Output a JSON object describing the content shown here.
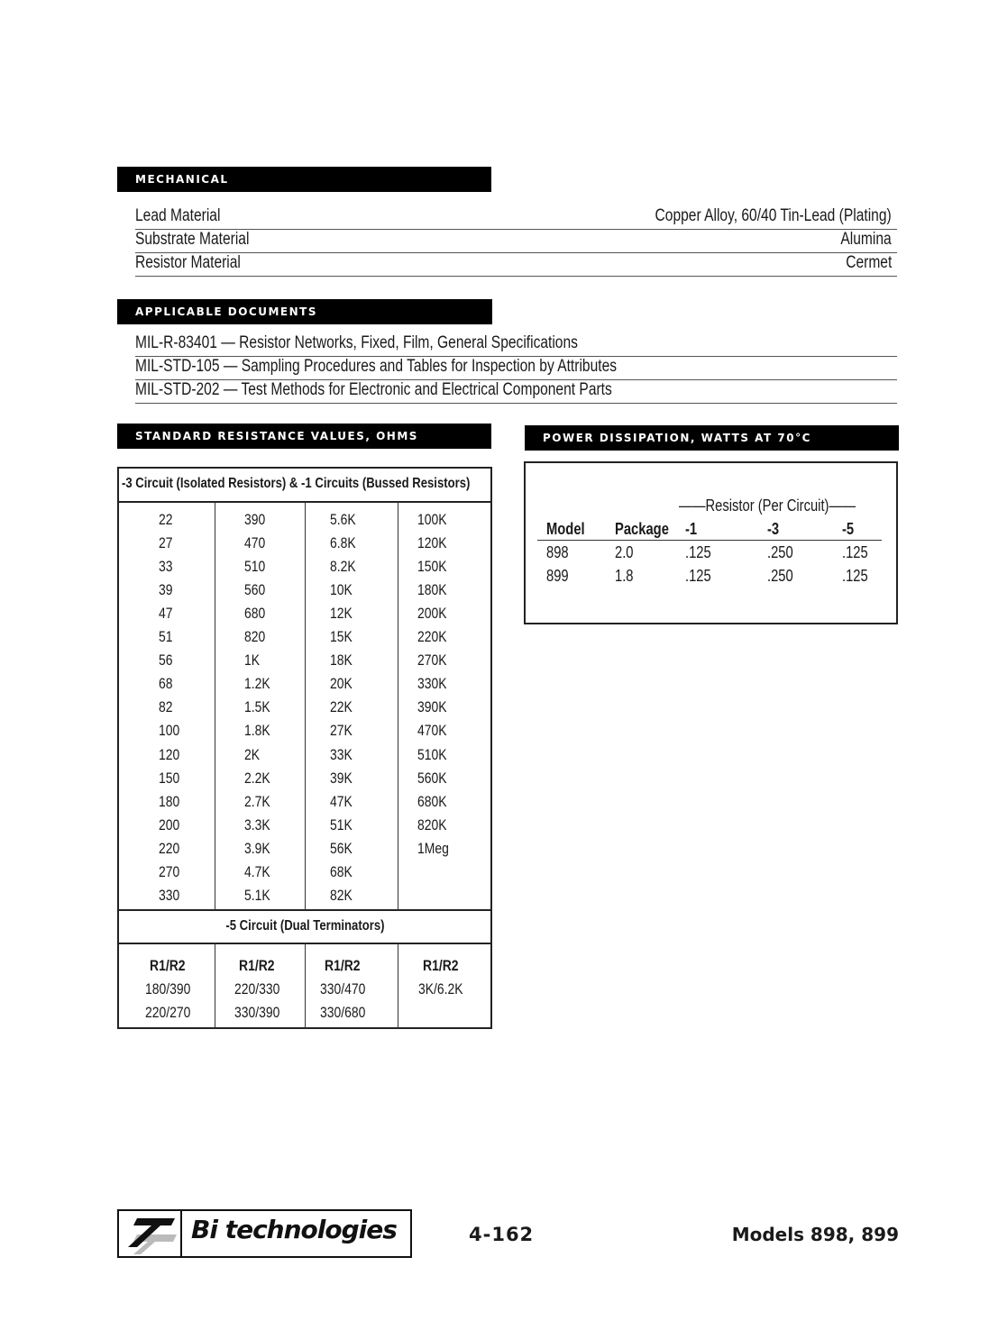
{
  "mechanical": {
    "title": "MECHANICAL",
    "rows": [
      {
        "label": "Lead Material",
        "value": "Copper Alloy, 60/40 Tin-Lead (Plating)"
      },
      {
        "label": "Substrate Material",
        "value": "Alumina"
      },
      {
        "label": "Resistor Material",
        "value": "Cermet"
      }
    ]
  },
  "documents": {
    "title": "APPLICABLE DOCUMENTS",
    "items": [
      "MIL-R-83401 — Resistor Networks, Fixed, Film, General Specifications",
      "MIL-STD-105 — Sampling Procedures and Tables for Inspection by Attributes",
      "MIL-STD-202 — Test Methods for Electronic and Electrical Component Parts"
    ]
  },
  "resistance": {
    "title": "STANDARD RESISTANCE VALUES, OHMS",
    "header": "-3 Circuit (Isolated Resistors) & -1 Circuits (Bussed Resistors)",
    "columns": [
      [
        "22",
        "27",
        "33",
        "39",
        "47",
        "51",
        "56",
        "68",
        "82",
        "100",
        "120",
        "150",
        "180",
        "200",
        "220",
        "270",
        "330"
      ],
      [
        "390",
        "470",
        "510",
        "560",
        "680",
        "820",
        "1K",
        "1.2K",
        "1.5K",
        "1.8K",
        "2K",
        "2.2K",
        "2.7K",
        "3.3K",
        "3.9K",
        "4.7K",
        "5.1K"
      ],
      [
        "5.6K",
        "6.8K",
        "8.2K",
        "10K",
        "12K",
        "15K",
        "18K",
        "20K",
        "22K",
        "27K",
        "33K",
        "39K",
        "47K",
        "51K",
        "56K",
        "68K",
        "82K"
      ],
      [
        "100K",
        "120K",
        "150K",
        "180K",
        "200K",
        "220K",
        "270K",
        "330K",
        "390K",
        "470K",
        "510K",
        "560K",
        "680K",
        "820K",
        "1Meg"
      ]
    ],
    "dual_header": "-5 Circuit (Dual Terminators)",
    "dual_columns": [
      [
        "R1/R2",
        "180/390",
        "220/270"
      ],
      [
        "R1/R2",
        "220/330",
        "330/390"
      ],
      [
        "R1/R2",
        "330/470",
        "330/680"
      ],
      [
        "R1/R2",
        "3K/6.2K"
      ]
    ]
  },
  "power": {
    "title": "POWER DISSIPATION, WATTS AT 70°C",
    "group_label": "——Resistor (Per Circuit)——",
    "headers": [
      "Model",
      "Package",
      "-1",
      "-3",
      "-5"
    ],
    "rows": [
      [
        "898",
        "2.0",
        ".125",
        ".250",
        ".125"
      ],
      [
        "899",
        "1.8",
        ".125",
        ".250",
        ".125"
      ]
    ]
  },
  "footer": {
    "logo_text": "Bi technologies",
    "page_number": "4-162",
    "models": "Models 898, 899"
  }
}
